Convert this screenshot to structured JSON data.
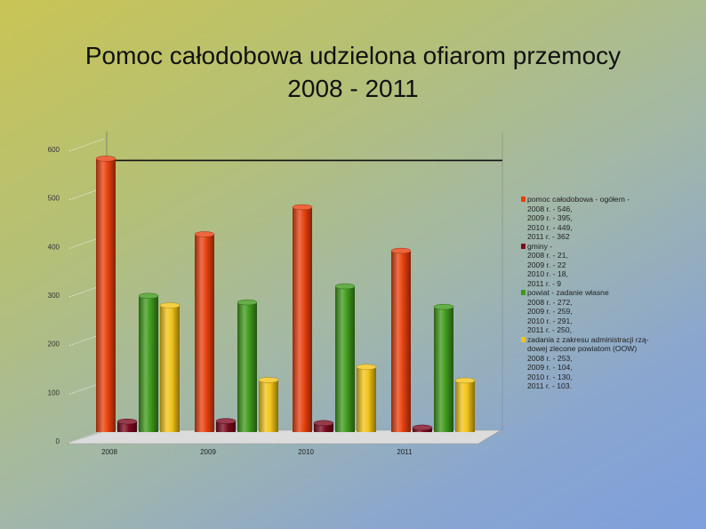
{
  "title": {
    "line1": "Pomoc całodobowa udzielona ofiarom przemocy",
    "line2": "2008 - 2011"
  },
  "chart_data": {
    "type": "bar",
    "categories": [
      "2008",
      "2009",
      "2010",
      "2011"
    ],
    "y_ticks": [
      "0",
      "100",
      "200",
      "300",
      "400",
      "500",
      "600"
    ],
    "ylim": [
      0,
      600
    ],
    "reference_line": 530,
    "series": [
      {
        "values": [
          546,
          395,
          449,
          362
        ],
        "color": "#e8400f"
      },
      {
        "values": [
          21,
          22,
          18,
          9
        ],
        "color": "#7a0a1e"
      },
      {
        "values": [
          272,
          259,
          291,
          250
        ],
        "color": "#3f9a1c"
      },
      {
        "values": [
          253,
          104,
          130,
          103
        ],
        "color": "#f2c418"
      }
    ],
    "legend": [
      {
        "color": "#e8400f",
        "lines": [
          "pomoc całodobowa - ogółem -",
          "2008 r. - 546,",
          "2009 r. - 395,",
          "2010 r. - 449,",
          "2011 r. - 362"
        ]
      },
      {
        "color": "#7a0a1e",
        "lines": [
          "gminy -",
          "2008 r. - 21,",
          "2009 r. - 22",
          "2010 r. - 18,",
          "2011 r. - 9"
        ]
      },
      {
        "color": "#3f9a1c",
        "lines": [
          "powiat - zadanie własne",
          "2008 r. - 272,",
          "2009 r. - 259,",
          "2010 r. - 291,",
          "2011 r. - 250,"
        ]
      },
      {
        "color": "#f2c418",
        "lines": [
          "zadania z zakresu administracji rzą-",
          "dowej zlecone powiatom (OOW)",
          "2008 r. - 253,",
          "2009 r. - 104,",
          "2010 r. - 130,",
          "2011 r. - 103."
        ]
      }
    ]
  }
}
